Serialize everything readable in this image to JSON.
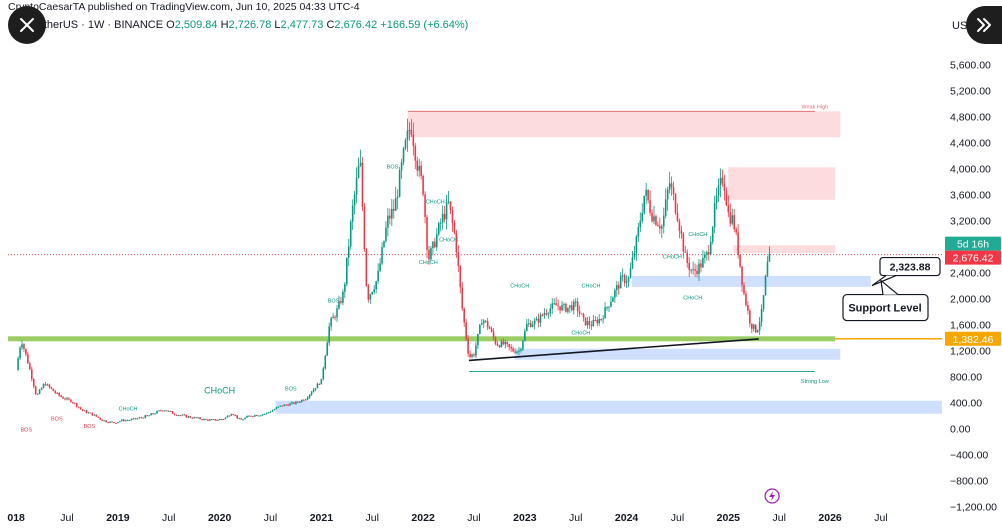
{
  "header": {
    "publisher_line": "CryptoCaesarTA published on TradingView.com, Jun 10, 2025 04:33 UTC-4",
    "symbol": "am / TetherUS · 1W · BINANCE",
    "open_label": "O",
    "open": "2,509.84",
    "high_label": "H",
    "high": "2,726.78",
    "low_label": "L",
    "low": "2,477.73",
    "close_label": "C",
    "close": "2,676.42",
    "change": "+166.59 (+6.64%)",
    "currency": "US"
  },
  "controls": {
    "close_icon": "close-x-icon",
    "next_icon": "double-chevron-right-icon"
  },
  "colors": {
    "up": "#089981",
    "down": "#f23645",
    "support_line": "#8bc34a",
    "demand_zone": "#c7dbff",
    "supply_zone": "#fcd3d6",
    "price_tag": "#f23645",
    "level_tag": "#f7a600",
    "countdown_tag": "#22ab94"
  },
  "chart_data": {
    "type": "candlestick",
    "timeframe": "1W",
    "y_ticks": [
      "5,600.00",
      "5,200.00",
      "4,800.00",
      "4,400.00",
      "4,000.00",
      "3,600.00",
      "3,200.00",
      "2,800.00",
      "2,400.00",
      "2,000.00",
      "1,600.00",
      "1,200.00",
      "800.00",
      "400.00",
      "0.00",
      "−400.00",
      "−800.00",
      "−1,200.00"
    ],
    "y_tick_values": [
      5600,
      5200,
      4800,
      4400,
      4000,
      3600,
      3200,
      2800,
      2400,
      2000,
      1600,
      1200,
      800,
      400,
      0,
      -400,
      -800,
      -1200
    ],
    "ylim": [
      -1250,
      5900
    ],
    "x_ticks": [
      "018",
      "Jul",
      "2019",
      "Jul",
      "2020",
      "Jul",
      "2021",
      "Jul",
      "2022",
      "Jul",
      "2023",
      "Jul",
      "2024",
      "Jul",
      "2025",
      "Jul",
      "2026",
      "Jul"
    ],
    "x_tick_values": [
      2018.0,
      2018.5,
      2019.0,
      2019.5,
      2020.0,
      2020.5,
      2021.0,
      2021.5,
      2022.0,
      2022.5,
      2023.0,
      2023.5,
      2024.0,
      2024.5,
      2025.0,
      2025.5,
      2026.0,
      2026.5
    ],
    "xlim": [
      2017.92,
      2027.1
    ],
    "price_path": [
      [
        2018.0,
        900
      ],
      [
        2018.05,
        1380
      ],
      [
        2018.12,
        1000
      ],
      [
        2018.2,
        500
      ],
      [
        2018.28,
        700
      ],
      [
        2018.38,
        560
      ],
      [
        2018.45,
        480
      ],
      [
        2018.55,
        420
      ],
      [
        2018.65,
        280
      ],
      [
        2018.75,
        220
      ],
      [
        2018.85,
        130
      ],
      [
        2018.95,
        90
      ],
      [
        2019.05,
        130
      ],
      [
        2019.15,
        140
      ],
      [
        2019.3,
        200
      ],
      [
        2019.45,
        300
      ],
      [
        2019.55,
        230
      ],
      [
        2019.7,
        180
      ],
      [
        2019.85,
        140
      ],
      [
        2019.95,
        130
      ],
      [
        2020.05,
        160
      ],
      [
        2020.12,
        250
      ],
      [
        2020.2,
        130
      ],
      [
        2020.3,
        200
      ],
      [
        2020.45,
        230
      ],
      [
        2020.6,
        350
      ],
      [
        2020.75,
        400
      ],
      [
        2020.85,
        470
      ],
      [
        2020.92,
        600
      ],
      [
        2021.0,
        740
      ],
      [
        2021.08,
        1600
      ],
      [
        2021.15,
        1800
      ],
      [
        2021.22,
        2100
      ],
      [
        2021.3,
        3300
      ],
      [
        2021.38,
        4150
      ],
      [
        2021.45,
        2000
      ],
      [
        2021.55,
        2300
      ],
      [
        2021.65,
        3200
      ],
      [
        2021.72,
        3400
      ],
      [
        2021.82,
        4300
      ],
      [
        2021.88,
        4700
      ],
      [
        2021.95,
        4000
      ],
      [
        2022.0,
        3700
      ],
      [
        2022.05,
        2600
      ],
      [
        2022.1,
        2800
      ],
      [
        2022.18,
        3200
      ],
      [
        2022.25,
        3450
      ],
      [
        2022.32,
        2900
      ],
      [
        2022.38,
        1900
      ],
      [
        2022.45,
        1100
      ],
      [
        2022.5,
        1150
      ],
      [
        2022.58,
        1700
      ],
      [
        2022.65,
        1550
      ],
      [
        2022.72,
        1300
      ],
      [
        2022.8,
        1300
      ],
      [
        2022.88,
        1200
      ],
      [
        2022.95,
        1200
      ],
      [
        2023.02,
        1600
      ],
      [
        2023.12,
        1650
      ],
      [
        2023.2,
        1800
      ],
      [
        2023.3,
        1900
      ],
      [
        2023.4,
        1850
      ],
      [
        2023.5,
        1900
      ],
      [
        2023.58,
        1650
      ],
      [
        2023.65,
        1600
      ],
      [
        2023.75,
        1700
      ],
      [
        2023.85,
        2000
      ],
      [
        2023.95,
        2300
      ],
      [
        2024.02,
        2300
      ],
      [
        2024.1,
        2900
      ],
      [
        2024.18,
        3650
      ],
      [
        2024.25,
        3300
      ],
      [
        2024.35,
        3100
      ],
      [
        2024.42,
        3800
      ],
      [
        2024.5,
        3300
      ],
      [
        2024.58,
        2600
      ],
      [
        2024.65,
        2400
      ],
      [
        2024.72,
        2500
      ],
      [
        2024.8,
        2700
      ],
      [
        2024.88,
        3500
      ],
      [
        2024.95,
        3900
      ],
      [
        2025.0,
        3300
      ],
      [
        2025.05,
        3200
      ],
      [
        2025.1,
        2700
      ],
      [
        2025.15,
        2100
      ],
      [
        2025.22,
        1600
      ],
      [
        2025.28,
        1500
      ],
      [
        2025.33,
        1800
      ],
      [
        2025.38,
        2500
      ],
      [
        2025.42,
        2676
      ]
    ],
    "support_line_level": 1382.46,
    "trendline": [
      [
        2022.45,
        1050
      ],
      [
        2025.3,
        1380
      ]
    ],
    "zones": [
      {
        "kind": "supply",
        "x0": 2021.85,
        "x1": 2026.1,
        "y0": 4480,
        "y1": 4880,
        "label": "Weak High"
      },
      {
        "kind": "supply",
        "x0": 2025.0,
        "x1": 2026.05,
        "y0": 3520,
        "y1": 4020
      },
      {
        "kind": "supply",
        "x0": 2025.05,
        "x1": 2026.05,
        "y0": 2700,
        "y1": 2820
      },
      {
        "kind": "demand",
        "x0": 2024.05,
        "x1": 2026.4,
        "y0": 2180,
        "y1": 2350
      },
      {
        "kind": "demand",
        "x0": 2022.9,
        "x1": 2026.1,
        "y0": 1060,
        "y1": 1230
      },
      {
        "kind": "demand",
        "x0": 2020.55,
        "x1": 2027.1,
        "y0": 230,
        "y1": 430
      }
    ],
    "annotations": [
      {
        "text": "BOS",
        "x": 2018.1,
        "y": -40
      },
      {
        "text": "BOS",
        "x": 2018.4,
        "y": 130
      },
      {
        "text": "BOS",
        "x": 2018.72,
        "y": 10
      },
      {
        "text": "CHoCH",
        "x": 2019.1,
        "y": 280
      },
      {
        "text": "CHoCH",
        "x": 2020.0,
        "y": 540
      },
      {
        "text": "BOS",
        "x": 2020.7,
        "y": 590
      },
      {
        "text": "BOS",
        "x": 2021.12,
        "y": 1940
      },
      {
        "text": "BOS",
        "x": 2021.7,
        "y": 4000
      },
      {
        "text": "CHoCH",
        "x": 2022.12,
        "y": 3460
      },
      {
        "text": "CHoCH",
        "x": 2022.05,
        "y": 2530
      },
      {
        "text": "CHoCH",
        "x": 2022.25,
        "y": 2880
      },
      {
        "text": "CHoCH",
        "x": 2022.95,
        "y": 2170
      },
      {
        "text": "CHoCH",
        "x": 2023.65,
        "y": 2170
      },
      {
        "text": "CHoCH",
        "x": 2024.7,
        "y": 2960
      },
      {
        "text": "CHoCH",
        "x": 2024.45,
        "y": 2620
      },
      {
        "text": "CHoCH",
        "x": 2024.65,
        "y": 1990
      },
      {
        "text": "CHoCH",
        "x": 2023.55,
        "y": 1450
      },
      {
        "text": "Weak High",
        "x": 2025.85,
        "y": 4920
      },
      {
        "text": "Strong Low",
        "x": 2025.85,
        "y": 700
      }
    ],
    "price_labels": {
      "current": "2,676.42",
      "countdown": "5d 16h",
      "level": "1,382.46",
      "callout_value": "2,323.88",
      "callout_text": "Support Level"
    },
    "callout_value": 2323.88
  }
}
